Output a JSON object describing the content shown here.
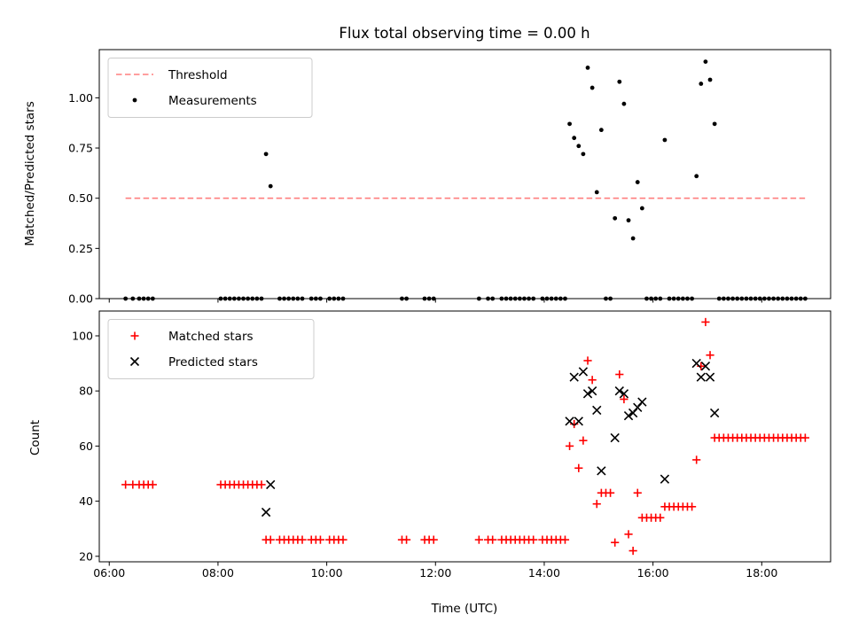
{
  "title": "Flux total observing time = 0.00 h",
  "colors": {
    "threshold": "#ff7f7f",
    "measurement": "#000000",
    "matched": "#ff0000",
    "predicted": "#000000"
  },
  "chart_data": [
    {
      "type": "scatter",
      "ylabel": "Matched/Predicted stars",
      "xlim": [
        "05:49",
        "19:16"
      ],
      "ylim": [
        0,
        1.24
      ],
      "yticks": [
        "0.00",
        "0.25",
        "0.50",
        "0.75",
        "1.00"
      ],
      "ytick_values": [
        0,
        0.25,
        0.5,
        0.75,
        1.0
      ],
      "legend": {
        "position": "top-left",
        "entries": [
          "Threshold",
          "Measurements"
        ]
      },
      "threshold": {
        "name": "Threshold",
        "value": 0.5,
        "x_range": [
          "06:18",
          "18:48"
        ]
      },
      "series": [
        {
          "name": "Measurements",
          "points": [
            [
              "06:18",
              0
            ],
            [
              "06:26",
              0
            ],
            [
              "06:33",
              0
            ],
            [
              "06:38",
              0
            ],
            [
              "06:43",
              0
            ],
            [
              "06:48",
              0
            ],
            [
              "08:03",
              0
            ],
            [
              "08:08",
              0
            ],
            [
              "08:13",
              0
            ],
            [
              "08:18",
              0
            ],
            [
              "08:23",
              0
            ],
            [
              "08:28",
              0
            ],
            [
              "08:33",
              0
            ],
            [
              "08:38",
              0
            ],
            [
              "08:43",
              0
            ],
            [
              "08:48",
              0
            ],
            [
              "08:53",
              0.72
            ],
            [
              "08:58",
              0.56
            ],
            [
              "09:08",
              0
            ],
            [
              "09:13",
              0
            ],
            [
              "09:18",
              0
            ],
            [
              "09:23",
              0
            ],
            [
              "09:28",
              0
            ],
            [
              "09:33",
              0
            ],
            [
              "09:43",
              0
            ],
            [
              "09:48",
              0
            ],
            [
              "09:53",
              0
            ],
            [
              "10:03",
              0
            ],
            [
              "10:08",
              0
            ],
            [
              "10:13",
              0
            ],
            [
              "10:18",
              0
            ],
            [
              "11:23",
              0
            ],
            [
              "11:28",
              0
            ],
            [
              "11:48",
              0
            ],
            [
              "11:53",
              0
            ],
            [
              "11:58",
              0
            ],
            [
              "12:48",
              0
            ],
            [
              "12:58",
              0
            ],
            [
              "13:03",
              0
            ],
            [
              "13:13",
              0
            ],
            [
              "13:18",
              0
            ],
            [
              "13:23",
              0
            ],
            [
              "13:28",
              0
            ],
            [
              "13:33",
              0
            ],
            [
              "13:38",
              0
            ],
            [
              "13:43",
              0
            ],
            [
              "13:48",
              0
            ],
            [
              "13:58",
              0
            ],
            [
              "14:03",
              0
            ],
            [
              "14:08",
              0
            ],
            [
              "14:13",
              0
            ],
            [
              "14:18",
              0
            ],
            [
              "14:23",
              0
            ],
            [
              "14:28",
              0.87
            ],
            [
              "14:33",
              0.8
            ],
            [
              "14:38",
              0.76
            ],
            [
              "14:43",
              0.72
            ],
            [
              "14:48",
              1.15
            ],
            [
              "14:53",
              1.05
            ],
            [
              "14:58",
              0.53
            ],
            [
              "15:03",
              0.84
            ],
            [
              "15:08",
              0
            ],
            [
              "15:13",
              0
            ],
            [
              "15:18",
              0.4
            ],
            [
              "15:23",
              1.08
            ],
            [
              "15:28",
              0.97
            ],
            [
              "15:33",
              0.39
            ],
            [
              "15:38",
              0.3
            ],
            [
              "15:43",
              0.58
            ],
            [
              "15:48",
              0.45
            ],
            [
              "15:53",
              0
            ],
            [
              "15:58",
              0
            ],
            [
              "16:03",
              0
            ],
            [
              "16:08",
              0
            ],
            [
              "16:13",
              0.79
            ],
            [
              "16:18",
              0
            ],
            [
              "16:23",
              0
            ],
            [
              "16:28",
              0
            ],
            [
              "16:33",
              0
            ],
            [
              "16:38",
              0
            ],
            [
              "16:43",
              0
            ],
            [
              "16:48",
              0.61
            ],
            [
              "16:53",
              1.07
            ],
            [
              "16:58",
              1.18
            ],
            [
              "17:03",
              1.09
            ],
            [
              "17:08",
              0.87
            ],
            [
              "17:13",
              0
            ],
            [
              "17:18",
              0
            ],
            [
              "17:23",
              0
            ],
            [
              "17:28",
              0
            ],
            [
              "17:33",
              0
            ],
            [
              "17:38",
              0
            ],
            [
              "17:43",
              0
            ],
            [
              "17:48",
              0
            ],
            [
              "17:53",
              0
            ],
            [
              "17:58",
              0
            ],
            [
              "18:03",
              0
            ],
            [
              "18:08",
              0
            ],
            [
              "18:13",
              0
            ],
            [
              "18:18",
              0
            ],
            [
              "18:23",
              0
            ],
            [
              "18:28",
              0
            ],
            [
              "18:33",
              0
            ],
            [
              "18:38",
              0
            ],
            [
              "18:43",
              0
            ],
            [
              "18:48",
              0
            ]
          ]
        }
      ]
    },
    {
      "type": "scatter",
      "xlabel": "Time (UTC)",
      "ylabel": "Count",
      "xlim": [
        "05:49",
        "19:16"
      ],
      "ylim": [
        18,
        109
      ],
      "yticks": [
        "20",
        "40",
        "60",
        "80",
        "100"
      ],
      "ytick_values": [
        20,
        40,
        60,
        80,
        100
      ],
      "xticks": [
        "06:00",
        "08:00",
        "10:00",
        "12:00",
        "14:00",
        "16:00",
        "18:00"
      ],
      "legend": {
        "position": "top-left",
        "entries": [
          "Matched stars",
          "Predicted stars"
        ]
      },
      "series": [
        {
          "name": "Matched stars",
          "points": [
            [
              "06:18",
              46
            ],
            [
              "06:26",
              46
            ],
            [
              "06:33",
              46
            ],
            [
              "06:38",
              46
            ],
            [
              "06:43",
              46
            ],
            [
              "06:48",
              46
            ],
            [
              "08:03",
              46
            ],
            [
              "08:08",
              46
            ],
            [
              "08:13",
              46
            ],
            [
              "08:18",
              46
            ],
            [
              "08:23",
              46
            ],
            [
              "08:28",
              46
            ],
            [
              "08:33",
              46
            ],
            [
              "08:38",
              46
            ],
            [
              "08:43",
              46
            ],
            [
              "08:48",
              46
            ],
            [
              "08:53",
              26
            ],
            [
              "08:58",
              26
            ],
            [
              "09:08",
              26
            ],
            [
              "09:13",
              26
            ],
            [
              "09:18",
              26
            ],
            [
              "09:23",
              26
            ],
            [
              "09:28",
              26
            ],
            [
              "09:33",
              26
            ],
            [
              "09:43",
              26
            ],
            [
              "09:48",
              26
            ],
            [
              "09:53",
              26
            ],
            [
              "10:03",
              26
            ],
            [
              "10:08",
              26
            ],
            [
              "10:13",
              26
            ],
            [
              "10:18",
              26
            ],
            [
              "11:23",
              26
            ],
            [
              "11:28",
              26
            ],
            [
              "11:48",
              26
            ],
            [
              "11:53",
              26
            ],
            [
              "11:58",
              26
            ],
            [
              "12:48",
              26
            ],
            [
              "12:58",
              26
            ],
            [
              "13:03",
              26
            ],
            [
              "13:13",
              26
            ],
            [
              "13:18",
              26
            ],
            [
              "13:23",
              26
            ],
            [
              "13:28",
              26
            ],
            [
              "13:33",
              26
            ],
            [
              "13:38",
              26
            ],
            [
              "13:43",
              26
            ],
            [
              "13:48",
              26
            ],
            [
              "13:58",
              26
            ],
            [
              "14:03",
              26
            ],
            [
              "14:08",
              26
            ],
            [
              "14:13",
              26
            ],
            [
              "14:18",
              26
            ],
            [
              "14:23",
              26
            ],
            [
              "14:28",
              60
            ],
            [
              "14:33",
              68
            ],
            [
              "14:38",
              52
            ],
            [
              "14:43",
              62
            ],
            [
              "14:48",
              91
            ],
            [
              "14:53",
              84
            ],
            [
              "14:58",
              39
            ],
            [
              "15:03",
              43
            ],
            [
              "15:08",
              43
            ],
            [
              "15:13",
              43
            ],
            [
              "15:18",
              25
            ],
            [
              "15:23",
              86
            ],
            [
              "15:28",
              77
            ],
            [
              "15:33",
              28
            ],
            [
              "15:38",
              22
            ],
            [
              "15:43",
              43
            ],
            [
              "15:48",
              34
            ],
            [
              "15:53",
              34
            ],
            [
              "15:58",
              34
            ],
            [
              "16:03",
              34
            ],
            [
              "16:08",
              34
            ],
            [
              "16:13",
              38
            ],
            [
              "16:18",
              38
            ],
            [
              "16:23",
              38
            ],
            [
              "16:28",
              38
            ],
            [
              "16:33",
              38
            ],
            [
              "16:38",
              38
            ],
            [
              "16:43",
              38
            ],
            [
              "16:48",
              55
            ],
            [
              "16:53",
              89
            ],
            [
              "16:58",
              105
            ],
            [
              "17:03",
              93
            ],
            [
              "17:08",
              63
            ],
            [
              "17:13",
              63
            ],
            [
              "17:18",
              63
            ],
            [
              "17:23",
              63
            ],
            [
              "17:28",
              63
            ],
            [
              "17:33",
              63
            ],
            [
              "17:38",
              63
            ],
            [
              "17:43",
              63
            ],
            [
              "17:48",
              63
            ],
            [
              "17:53",
              63
            ],
            [
              "17:58",
              63
            ],
            [
              "18:03",
              63
            ],
            [
              "18:08",
              63
            ],
            [
              "18:13",
              63
            ],
            [
              "18:18",
              63
            ],
            [
              "18:23",
              63
            ],
            [
              "18:28",
              63
            ],
            [
              "18:33",
              63
            ],
            [
              "18:38",
              63
            ],
            [
              "18:43",
              63
            ],
            [
              "18:48",
              63
            ]
          ]
        },
        {
          "name": "Predicted stars",
          "points": [
            [
              "08:53",
              36
            ],
            [
              "08:58",
              46
            ],
            [
              "14:28",
              69
            ],
            [
              "14:33",
              85
            ],
            [
              "14:38",
              69
            ],
            [
              "14:43",
              87
            ],
            [
              "14:48",
              79
            ],
            [
              "14:53",
              80
            ],
            [
              "14:58",
              73
            ],
            [
              "15:03",
              51
            ],
            [
              "15:18",
              63
            ],
            [
              "15:23",
              80
            ],
            [
              "15:28",
              79
            ],
            [
              "15:33",
              71
            ],
            [
              "15:38",
              72
            ],
            [
              "15:43",
              74
            ],
            [
              "15:48",
              76
            ],
            [
              "16:13",
              48
            ],
            [
              "16:48",
              90
            ],
            [
              "16:53",
              85
            ],
            [
              "16:58",
              89
            ],
            [
              "17:03",
              85
            ],
            [
              "17:08",
              72
            ]
          ]
        }
      ]
    }
  ]
}
